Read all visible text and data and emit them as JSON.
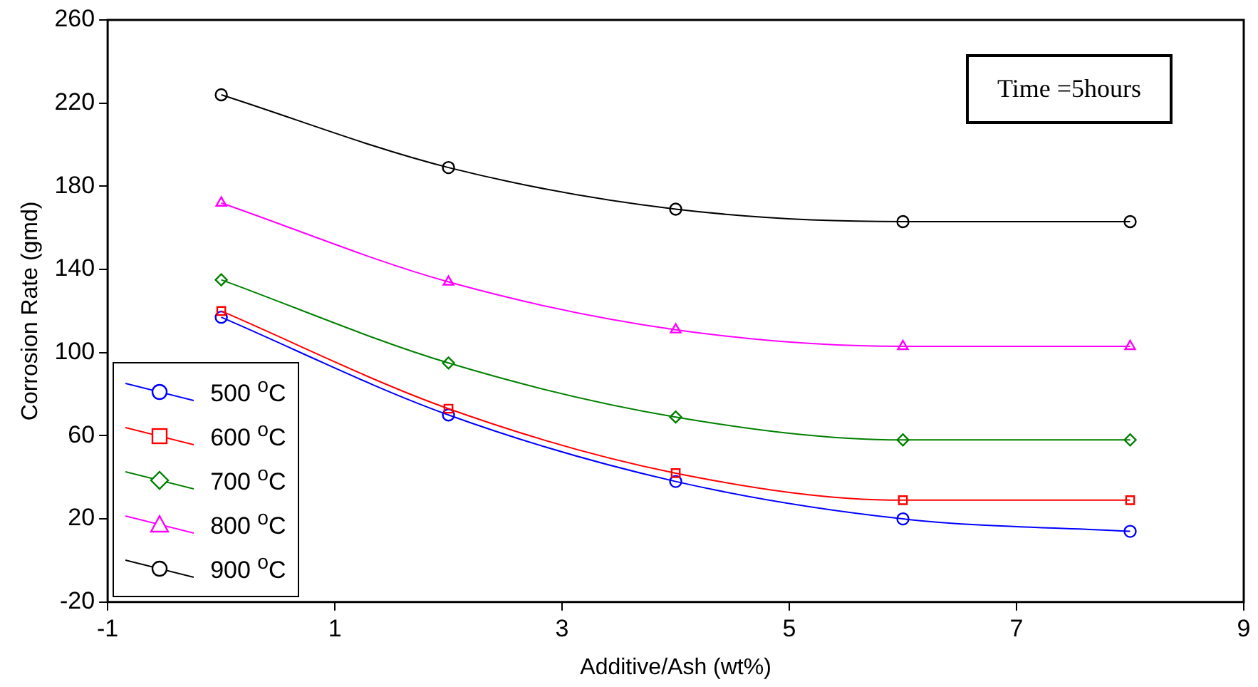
{
  "chart_data": {
    "type": "line",
    "xlabel": "Additive/Ash (wt%)",
    "ylabel": "Corrosion Rate (gmd)",
    "annotations": [
      "Time =5hours"
    ],
    "x": [
      0,
      2,
      4,
      6,
      8
    ],
    "xlim": [
      -1,
      9
    ],
    "xticks": [
      -1,
      1,
      3,
      5,
      7,
      9
    ],
    "ylim": [
      -20,
      260
    ],
    "yticks": [
      -20,
      20,
      60,
      100,
      140,
      180,
      220,
      260
    ],
    "grid": false,
    "legend": "bottom left",
    "line_style": "solid",
    "series": [
      {
        "name": "500 $^{o}$C",
        "color": "#0000ff",
        "marker": "circle",
        "values": [
          117,
          70,
          38,
          20,
          14
        ]
      },
      {
        "name": "600 $^{o}$C",
        "color": "#ff0000",
        "marker": "square",
        "values": [
          120,
          73,
          42,
          29,
          29
        ]
      },
      {
        "name": "700 $^{o}$C",
        "color": "#008000",
        "marker": "diamond",
        "values": [
          135,
          95,
          69,
          58,
          58
        ]
      },
      {
        "name": "800 $^{o}$C",
        "color": "#ff00ff",
        "marker": "triangle",
        "values": [
          172,
          134,
          111,
          103,
          103
        ]
      },
      {
        "name": "900 $^{o}$C",
        "color": "#000000",
        "marker": "circle",
        "values": [
          224,
          189,
          169,
          163,
          163
        ]
      }
    ]
  }
}
